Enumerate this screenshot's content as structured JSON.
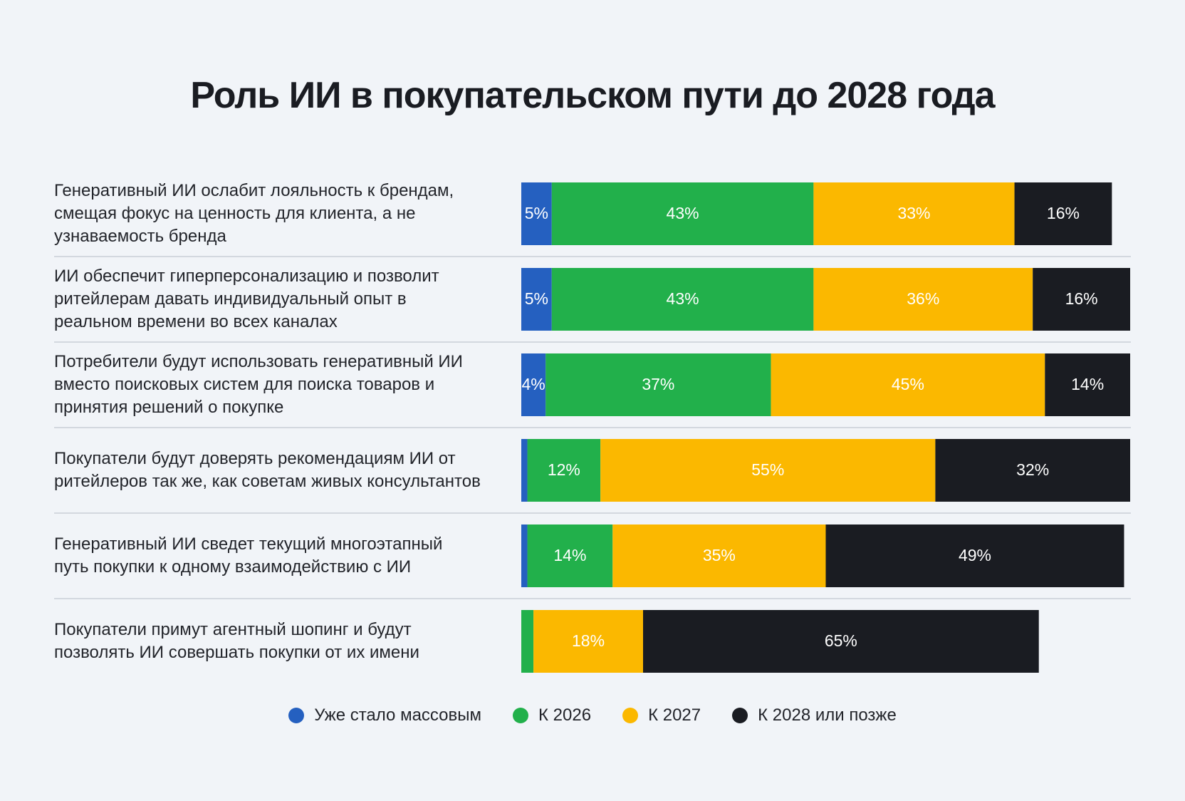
{
  "chart_data": {
    "type": "stacked-bar",
    "title": "Роль ИИ в покупательском пути до 2028 года",
    "categories": [
      "Генеративный ИИ ослабит лояльность к брендам, смещая фокус на ценность для клиента, а не узнаваемость бренда",
      "ИИ обеспечит гиперперсонализацию и позволит ритейлерам давать индивидуальный опыт в реальном времени во всех каналах",
      "Потребители будут использовать генеративный ИИ вместо поисковых систем для поиска товаров и принятия решений о покупке",
      "Покупатели будут доверять рекомендациям ИИ от ритейлеров так же, как советам живых консультантов",
      "Генеративный ИИ сведет текущий многоэтапный путь покупки к одному взаимодействию с ИИ",
      "Покупатели примут агентный шопинг и будут позволять ИИ совершать покупки от их имени"
    ],
    "series": [
      {
        "name": "Уже стало массовым",
        "color": "#2560c0",
        "values": [
          5,
          5,
          4,
          1,
          1,
          0
        ],
        "value_labels": [
          "5%",
          "5%",
          "4%",
          null,
          null,
          null
        ]
      },
      {
        "name": "К 2026",
        "color": "#22b04b",
        "values": [
          43,
          43,
          37,
          12,
          14,
          2
        ],
        "value_labels": [
          "43%",
          "43%",
          "37%",
          "12%",
          "14%",
          null
        ]
      },
      {
        "name": "К 2027",
        "color": "#fbb800",
        "values": [
          33,
          36,
          45,
          55,
          35,
          18
        ],
        "value_labels": [
          "33%",
          "36%",
          "45%",
          "55%",
          "35%",
          "18%"
        ]
      },
      {
        "name": "К 2028 или позже",
        "color": "#1a1c22",
        "values": [
          16,
          16,
          14,
          32,
          49,
          65
        ],
        "value_labels": [
          "16%",
          "16%",
          "14%",
          "32%",
          "49%",
          "65%"
        ]
      }
    ]
  }
}
